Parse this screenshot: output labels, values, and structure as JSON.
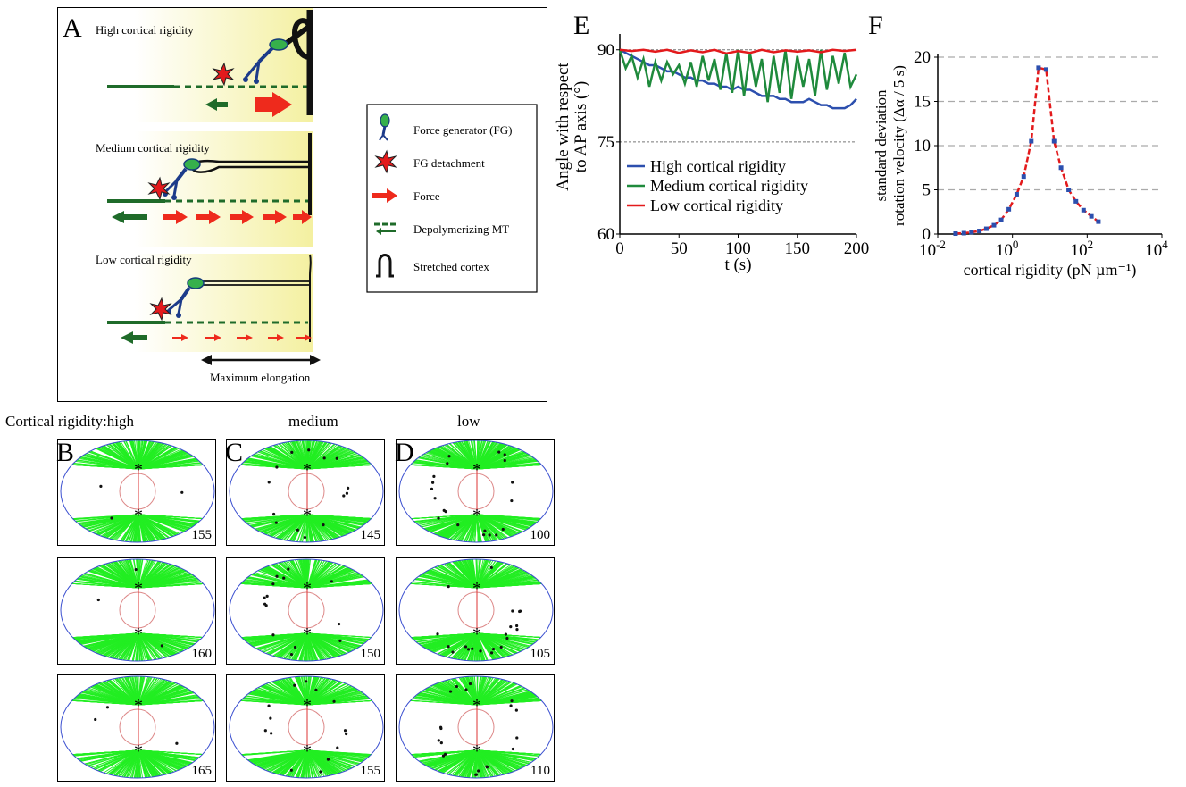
{
  "panel_labels": {
    "A": "A",
    "B": "B",
    "C": "C",
    "D": "D",
    "E": "E",
    "F": "F"
  },
  "panel_a": {
    "rows": [
      "High cortical rigidity",
      "Medium cortical rigidity",
      "Low cortical rigidity"
    ],
    "max_elongation": "Maximum elongation",
    "legend": [
      {
        "icon": "force-generator-icon",
        "label": "Force generator (FG)"
      },
      {
        "icon": "detachment-star-icon",
        "label": "FG detachment"
      },
      {
        "icon": "red-arrow-icon",
        "label": "Force"
      },
      {
        "icon": "depolymerizing-mt-icon",
        "label": "Depolymerizing MT"
      },
      {
        "icon": "stretched-cortex-icon",
        "label": "Stretched cortex"
      }
    ]
  },
  "sim_headers": {
    "high": "Cortical rigidity:high",
    "medium": "medium",
    "low": "low"
  },
  "sim_frames": {
    "high": [
      "155",
      "160",
      "165"
    ],
    "medium": [
      "145",
      "150",
      "155"
    ],
    "low": [
      "100",
      "105",
      "110"
    ]
  },
  "chart_data": [
    {
      "type": "line",
      "panel": "E",
      "xlabel": "t (s)",
      "ylabel_lines": [
        "Angle with respect",
        "to AP axis (°)"
      ],
      "xlim": [
        0,
        200
      ],
      "ylim": [
        60,
        92
      ],
      "xticks": [
        "0",
        "50",
        "100",
        "150",
        "200"
      ],
      "yticks": [
        "60",
        "75",
        "90"
      ],
      "reference_lines": [
        75,
        90
      ],
      "series": [
        {
          "name": "High cortical rigidity",
          "color": "#2c4fae",
          "x": [
            0,
            5,
            10,
            15,
            20,
            25,
            30,
            35,
            40,
            45,
            50,
            55,
            60,
            65,
            70,
            75,
            80,
            85,
            90,
            95,
            100,
            105,
            110,
            115,
            120,
            125,
            130,
            135,
            140,
            145,
            150,
            155,
            160,
            165,
            170,
            175,
            180,
            185,
            190,
            195,
            200
          ],
          "y": [
            90,
            89.5,
            89,
            88.5,
            88,
            87.5,
            87.5,
            87,
            86.5,
            86.5,
            86,
            85.5,
            85.5,
            85,
            85,
            84.5,
            84.5,
            84,
            84,
            83.5,
            84,
            83.5,
            83.5,
            83,
            82.5,
            82.5,
            82.5,
            82,
            82,
            81.5,
            81.5,
            81.5,
            82,
            81.5,
            81,
            81,
            80.5,
            80.5,
            80.5,
            81,
            82
          ]
        },
        {
          "name": "Medium cortical rigidity",
          "color": "#1f8a3c",
          "x": [
            0,
            5,
            10,
            15,
            20,
            25,
            30,
            35,
            40,
            45,
            50,
            55,
            60,
            65,
            70,
            75,
            80,
            85,
            90,
            95,
            100,
            105,
            110,
            115,
            120,
            125,
            130,
            135,
            140,
            145,
            150,
            155,
            160,
            165,
            170,
            175,
            180,
            185,
            190,
            195,
            200
          ],
          "y": [
            90,
            87,
            89,
            85.5,
            88.5,
            84,
            88,
            85,
            88,
            86,
            87.5,
            84.5,
            88,
            84,
            89,
            85,
            88.5,
            83.5,
            89.5,
            83,
            90,
            82.5,
            89.5,
            84,
            88.5,
            81.5,
            89,
            83,
            90,
            82,
            89,
            84,
            88.5,
            82.5,
            90,
            83.5,
            89,
            84.5,
            89.5,
            84,
            86
          ]
        },
        {
          "name": "Low cortical rigidity",
          "color": "#e31a1c",
          "x": [
            0,
            10,
            20,
            30,
            40,
            50,
            60,
            70,
            80,
            90,
            100,
            110,
            120,
            130,
            140,
            150,
            160,
            170,
            180,
            190,
            200
          ],
          "y": [
            90,
            89.8,
            90,
            89.7,
            90,
            89.5,
            89.9,
            89.6,
            90,
            89.4,
            89.8,
            89.5,
            90,
            89.6,
            89.9,
            89.7,
            89.9,
            89.6,
            90,
            89.8,
            90
          ]
        }
      ]
    },
    {
      "type": "line",
      "panel": "F",
      "xlabel": "cortical rigidity (pN µm⁻¹)",
      "ylabel_lines": [
        "standard deviation",
        "rotation velocity (Δα / 5 s)"
      ],
      "xscale": "log",
      "xlim": [
        0.01,
        10000
      ],
      "ylim": [
        0,
        20
      ],
      "xticks": [
        {
          "base": "10",
          "exp": "-2"
        },
        {
          "base": "10",
          "exp": "0"
        },
        {
          "base": "10",
          "exp": "2"
        },
        {
          "base": "10",
          "exp": "4"
        }
      ],
      "yticks": [
        "0",
        "5",
        "10",
        "15",
        "20"
      ],
      "grid": "horizontal dashed",
      "series": [
        {
          "color": "#e31a1c",
          "style": "dashed",
          "marker_color": "#2c4fae",
          "x": [
            0.03,
            0.05,
            0.08,
            0.13,
            0.2,
            0.32,
            0.5,
            0.8,
            1.3,
            2,
            3.2,
            5,
            8,
            13,
            20,
            32,
            50,
            80,
            130,
            200
          ],
          "y": [
            0.05,
            0.1,
            0.2,
            0.35,
            0.6,
            1.0,
            1.6,
            2.8,
            4.5,
            6.5,
            10.5,
            18.8,
            18.6,
            10.5,
            7.5,
            5.0,
            3.7,
            2.7,
            2.0,
            1.4
          ]
        }
      ]
    }
  ]
}
